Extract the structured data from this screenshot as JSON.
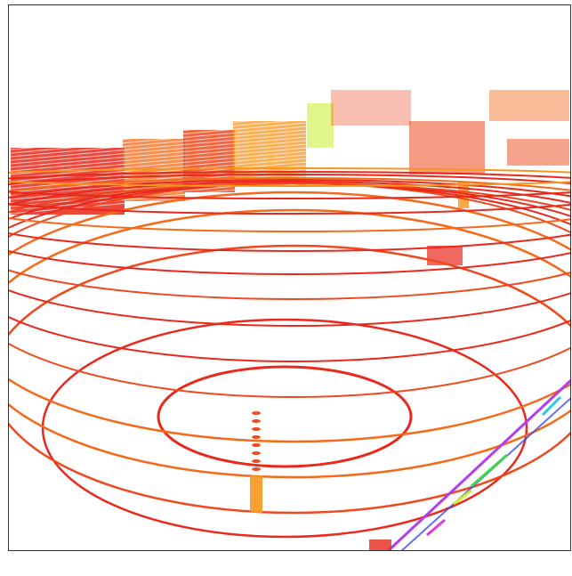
{
  "viewer": {
    "palette": {
      "near": "#e8291c",
      "mid": "#ef4a1f",
      "far": "#f46a1a",
      "orange": "#f7961e",
      "yellow_green": "#c8ef2a",
      "green": "#3fd84a",
      "cyan": "#27c8e8",
      "blue": "#3d4bf0",
      "purple": "#b23df0",
      "magenta": "#e03bd8"
    }
  }
}
